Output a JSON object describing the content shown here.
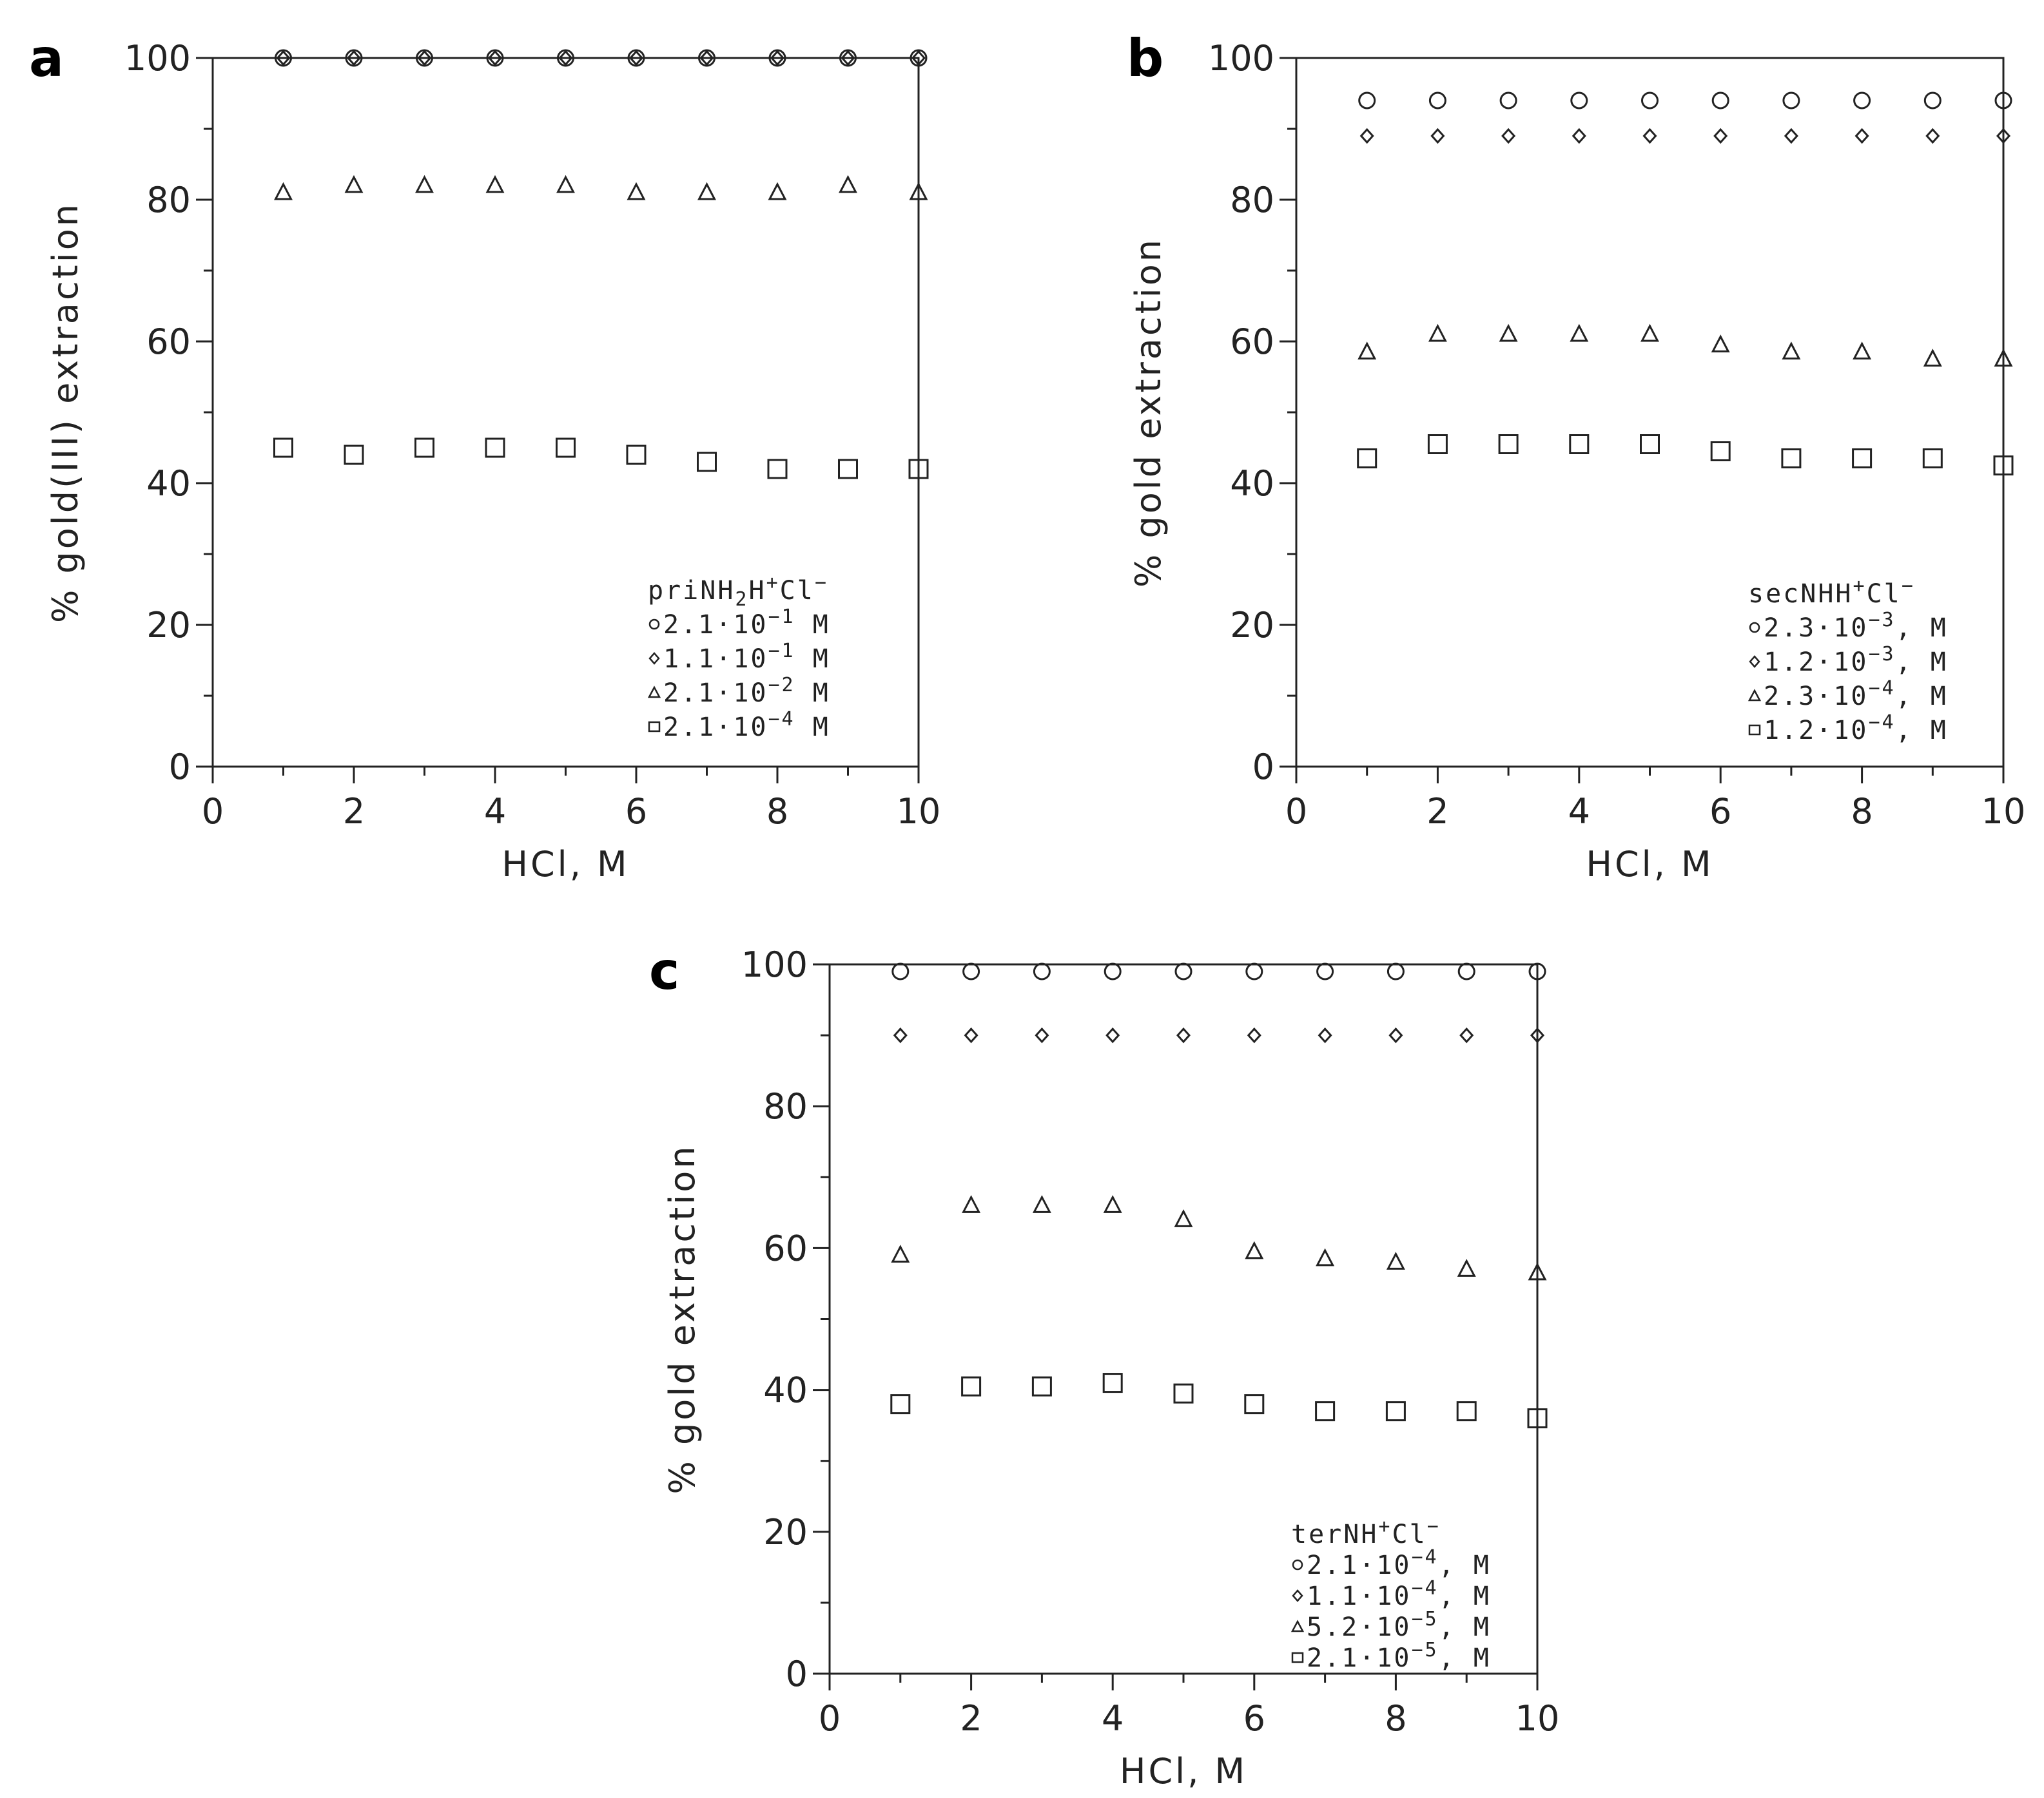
{
  "chart_data": [
    {
      "panel": "a",
      "type": "scatter",
      "xlabel": "HCl,  M",
      "ylabel": "%  gold(III)  extraction",
      "xlim": [
        0,
        10
      ],
      "ylim": [
        0,
        100
      ],
      "xticks": [
        0,
        2,
        4,
        6,
        8,
        10
      ],
      "yticks": [
        0,
        20,
        40,
        60,
        80,
        100
      ],
      "legend_title": {
        "base": "priNH",
        "sub": "2",
        "mid": "H",
        "sup1": "+",
        "tail": "Cl",
        "sup2": "−"
      },
      "legend_position": "bottom-right",
      "x": [
        1,
        2,
        3,
        4,
        5,
        6,
        7,
        8,
        9,
        10
      ],
      "series": [
        {
          "name": "2.1·10−1 M",
          "marker": "circle",
          "mantissa": "2.1·10",
          "exp": "−1",
          "unit": " M",
          "values": [
            100,
            100,
            100,
            100,
            100,
            100,
            100,
            100,
            100,
            100
          ]
        },
        {
          "name": "1.1·10−1 M",
          "marker": "diamond",
          "mantissa": "1.1·10",
          "exp": "−1",
          "unit": " M",
          "values": [
            100,
            100,
            100,
            100,
            100,
            100,
            100,
            100,
            100,
            100
          ]
        },
        {
          "name": "2.1·10−2 M",
          "marker": "triangle",
          "mantissa": "2.1·10",
          "exp": "−2",
          "unit": " M",
          "values": [
            81,
            82,
            82,
            82,
            82,
            81,
            81,
            81,
            82,
            81
          ]
        },
        {
          "name": "2.1·10−4 M",
          "marker": "square",
          "mantissa": "2.1·10",
          "exp": "−4",
          "unit": " M",
          "values": [
            45,
            44,
            45,
            45,
            45,
            44,
            43,
            42,
            42,
            42
          ]
        }
      ]
    },
    {
      "panel": "b",
      "type": "scatter",
      "xlabel": "HCl,  M",
      "ylabel": "%  gold  extraction",
      "xlim": [
        0,
        10
      ],
      "ylim": [
        0,
        100
      ],
      "xticks": [
        0,
        2,
        4,
        6,
        8,
        10
      ],
      "yticks": [
        0,
        20,
        40,
        60,
        80,
        100
      ],
      "legend_title": {
        "base": "secNHH",
        "sub": "",
        "mid": "",
        "sup1": "+",
        "tail": "Cl",
        "sup2": "−"
      },
      "legend_position": "bottom-right",
      "x": [
        1,
        2,
        3,
        4,
        5,
        6,
        7,
        8,
        9,
        10
      ],
      "series": [
        {
          "name": "2.3·10−3, M",
          "marker": "circle",
          "mantissa": "2.3·10",
          "exp": "−3",
          "unit": ", M",
          "values": [
            94,
            94,
            94,
            94,
            94,
            94,
            94,
            94,
            94,
            94
          ]
        },
        {
          "name": "1.2·10−3, M",
          "marker": "diamond",
          "mantissa": "1.2·10",
          "exp": "−3",
          "unit": ", M",
          "values": [
            89,
            89,
            89,
            89,
            89,
            89,
            89,
            89,
            89,
            89
          ]
        },
        {
          "name": "2.3·10−4, M",
          "marker": "triangle",
          "mantissa": "2.3·10",
          "exp": "−4",
          "unit": ", M",
          "values": [
            58.5,
            61,
            61,
            61,
            61,
            59.5,
            58.5,
            58.5,
            57.5,
            57.5
          ]
        },
        {
          "name": "1.2·10−4, M",
          "marker": "square",
          "mantissa": "1.2·10",
          "exp": "−4",
          "unit": ", M",
          "values": [
            43.5,
            45.5,
            45.5,
            45.5,
            45.5,
            44.5,
            43.5,
            43.5,
            43.5,
            42.5
          ]
        }
      ]
    },
    {
      "panel": "c",
      "type": "scatter",
      "xlabel": "HCl,  M",
      "ylabel": "%  gold  extraction",
      "xlim": [
        0,
        10
      ],
      "ylim": [
        0,
        100
      ],
      "xticks": [
        0,
        2,
        4,
        6,
        8,
        10
      ],
      "yticks": [
        0,
        20,
        40,
        60,
        80,
        100
      ],
      "legend_title": {
        "base": "terNH",
        "sub": "",
        "mid": "",
        "sup1": "+",
        "tail": "Cl",
        "sup2": "−"
      },
      "legend_position": "bottom-right",
      "x": [
        1,
        2,
        3,
        4,
        5,
        6,
        7,
        8,
        9,
        10
      ],
      "series": [
        {
          "name": "2.1·10−4, M",
          "marker": "circle",
          "mantissa": "2.1·10",
          "exp": "−4",
          "unit": ", M",
          "values": [
            99,
            99,
            99,
            99,
            99,
            99,
            99,
            99,
            99,
            99
          ]
        },
        {
          "name": "1.1·10−4, M",
          "marker": "diamond",
          "mantissa": "1.1·10",
          "exp": "−4",
          "unit": ", M",
          "values": [
            90,
            90,
            90,
            90,
            90,
            90,
            90,
            90,
            90,
            90
          ]
        },
        {
          "name": "5.2·10−5, M",
          "marker": "triangle",
          "mantissa": "5.2·10",
          "exp": "−5",
          "unit": ", M",
          "values": [
            59,
            66,
            66,
            66,
            64,
            59.5,
            58.5,
            58,
            57,
            56.5
          ]
        },
        {
          "name": "2.1·10−5, M",
          "marker": "square",
          "mantissa": "2.1·10",
          "exp": "−5",
          "unit": ", M",
          "values": [
            38,
            40.5,
            40.5,
            41,
            39.5,
            38,
            37,
            37,
            37,
            36
          ]
        }
      ]
    }
  ]
}
